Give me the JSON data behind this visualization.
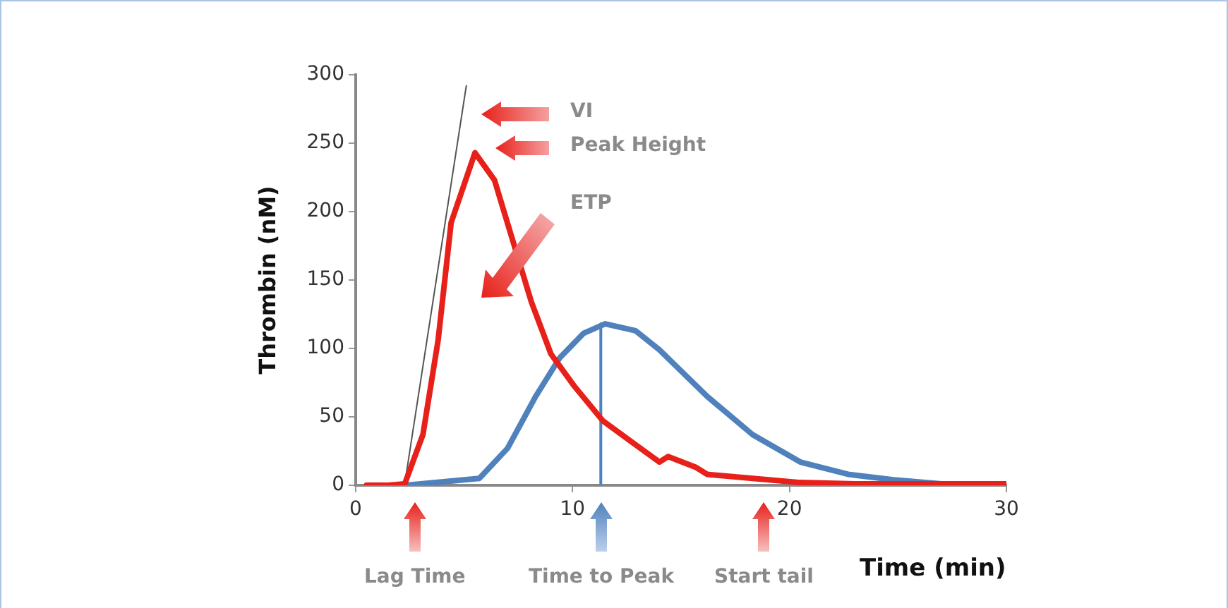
{
  "chart_data": {
    "type": "line",
    "xlabel": "Time (min)",
    "ylabel": "Thrombin (nM)",
    "xlim": [
      0,
      30
    ],
    "xticks": [
      0,
      10,
      20,
      30
    ],
    "ylim": [
      0,
      300
    ],
    "yticks": [
      0,
      50,
      100,
      150,
      200,
      250,
      300
    ],
    "grid": false,
    "legend": false,
    "marker": "none",
    "series": [
      {
        "color": "#e8201a",
        "x": [
          0.5,
          1.5,
          2.26,
          3.1,
          3.8,
          4.4,
          5.5,
          6.4,
          7.2,
          8.1,
          9.0,
          10.1,
          11.4,
          12.7,
          14.0,
          14.4,
          15.7,
          16.2,
          18.3,
          20.5,
          23,
          26,
          30
        ],
        "values": [
          0,
          0,
          1,
          37,
          106,
          192,
          243,
          223,
          181,
          134,
          96,
          72,
          47,
          32,
          17,
          21,
          13,
          8,
          5,
          2,
          1,
          1,
          1
        ]
      },
      {
        "color": "#4f81bd",
        "x": [
          2.3,
          5.7,
          7.0,
          8.3,
          9.4,
          10.5,
          11.5,
          12.9,
          14.0,
          16.2,
          18.3,
          20.5,
          22.7,
          24.8,
          27,
          30
        ],
        "values": [
          0,
          5,
          27,
          65,
          93,
          111,
          118,
          113,
          99,
          65,
          37,
          17,
          8,
          4,
          1,
          0
        ]
      },
      {
        "color": "#555555",
        "x": [
          2.26,
          5.1
        ],
        "values": [
          1,
          292
        ]
      },
      {
        "color": "#4f81bd",
        "x": [
          11.3,
          11.3
        ],
        "values": [
          0,
          118
        ]
      }
    ],
    "annotations": [
      "VI",
      "Peak Height",
      "ETP",
      "Lag Time",
      "Time to Peak",
      "Start tail"
    ]
  }
}
